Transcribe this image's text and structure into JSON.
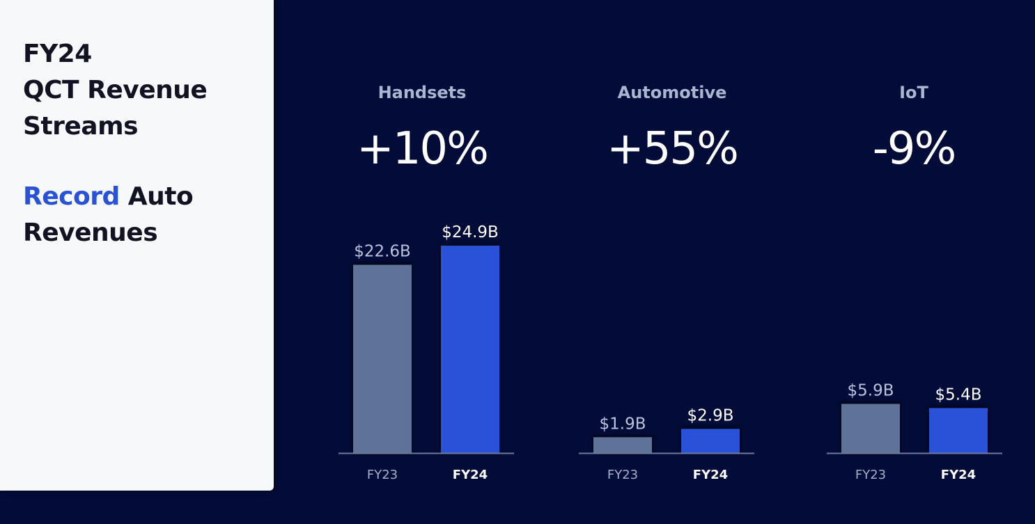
{
  "panel": {
    "title_lines": [
      "FY24",
      "QCT Revenue",
      "Streams"
    ],
    "subtitle_accent": "Record",
    "subtitle_rest": "Auto",
    "subtitle_line2": "Revenues"
  },
  "colors": {
    "background": "#030c38",
    "panel": "#f7f8fa",
    "accent": "#2a52d8",
    "fy23_bar": "#5f7297",
    "fy24_bar": "#2a52d8",
    "category_label": "#aab5d0",
    "axis": "#6f7a99"
  },
  "chart_data": [
    {
      "type": "bar",
      "title": "Handsets",
      "growth": "+10%",
      "categories": [
        "FY23",
        "FY24"
      ],
      "values": [
        22.6,
        24.9
      ],
      "value_labels": [
        "$22.6B",
        "$24.9B"
      ],
      "unit": "$B"
    },
    {
      "type": "bar",
      "title": "Automotive",
      "growth": "+55%",
      "categories": [
        "FY23",
        "FY24"
      ],
      "values": [
        1.9,
        2.9
      ],
      "value_labels": [
        "$1.9B",
        "$2.9B"
      ],
      "unit": "$B"
    },
    {
      "type": "bar",
      "title": "IoT",
      "growth": "-9%",
      "categories": [
        "FY23",
        "FY24"
      ],
      "values": [
        5.9,
        5.4
      ],
      "value_labels": [
        "$5.9B",
        "$5.4B"
      ],
      "unit": "$B"
    }
  ]
}
